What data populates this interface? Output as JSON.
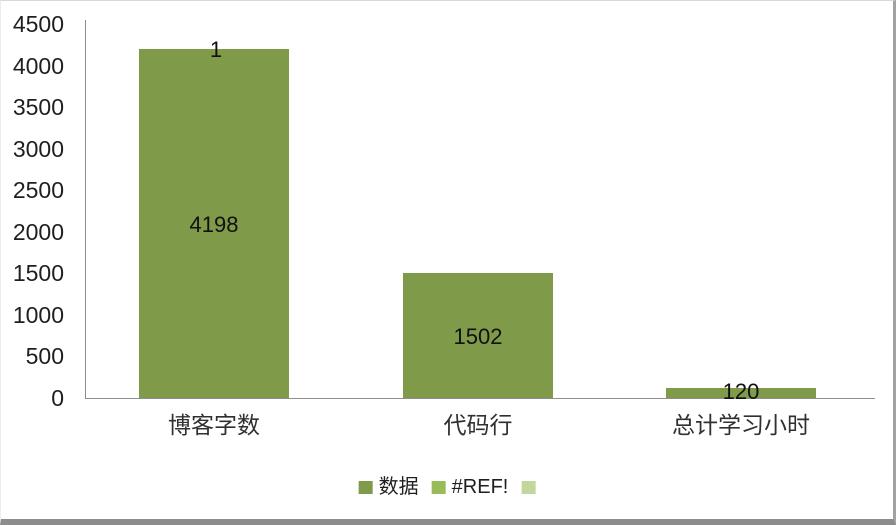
{
  "chart_data": {
    "type": "bar",
    "stacked": true,
    "title": "",
    "xlabel": "",
    "ylabel": "",
    "categories": [
      "博客字数",
      "代码行",
      "总计学习小时"
    ],
    "series": [
      {
        "name": "数据",
        "color": "#7F9A49",
        "values": [
          4198,
          1502,
          120
        ],
        "labels": [
          "4198",
          "1502",
          "120"
        ]
      },
      {
        "name": "#REF!",
        "color": "#9ABB59",
        "values": [
          1,
          null,
          null
        ],
        "labels": [
          "1",
          "",
          ""
        ]
      },
      {
        "name": "",
        "color": "#C3D69B",
        "values": [
          null,
          null,
          null
        ],
        "labels": [
          "",
          "",
          ""
        ]
      }
    ],
    "ylim": [
      0,
      4500
    ],
    "yticks": [
      0,
      500,
      1000,
      1500,
      2000,
      2500,
      3000,
      3500,
      4000,
      4500
    ],
    "grid": false,
    "legend_position": "bottom",
    "legend": [
      {
        "label": "数据",
        "color": "#7F9A49"
      },
      {
        "label": "#REF!",
        "color": "#9ABB59"
      },
      {
        "label": "",
        "color": "#C3D69B"
      }
    ]
  },
  "colors": {
    "bar_fill": "#7F9A49",
    "axis_line": "#8E8E8E",
    "text": "#1F1F1F",
    "background": "#FFFFFF",
    "frame_border_right": "#A2A2A2",
    "frame_border_bottom": "#8C8C8C"
  }
}
